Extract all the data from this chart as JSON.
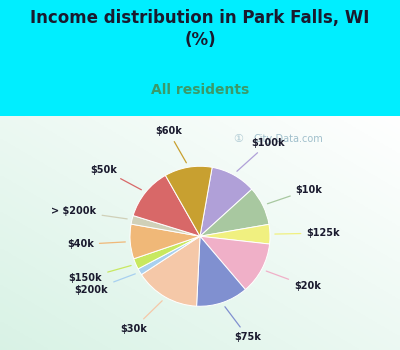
{
  "title": "Income distribution in Park Falls, WI\n(%)",
  "subtitle": "All residents",
  "labels": [
    "$100k",
    "$10k",
    "$125k",
    "$20k",
    "$75k",
    "$30k",
    "$200k",
    "$150k",
    "$40k",
    "> $200k",
    "$50k",
    "$60k"
  ],
  "sizes": [
    10.5,
    9.0,
    4.5,
    12.0,
    12.0,
    15.0,
    1.5,
    2.5,
    8.0,
    2.0,
    12.0,
    11.0
  ],
  "colors": [
    "#b0a0d8",
    "#a8c8a0",
    "#f0f080",
    "#f0b0c8",
    "#8090d0",
    "#f5c8a8",
    "#a8d0f0",
    "#c8e860",
    "#f0b878",
    "#d0d0b8",
    "#d86868",
    "#c8a030"
  ],
  "bg_color_outer": "#00eeff",
  "title_color": "#1a1a2e",
  "subtitle_color": "#3a9a6a",
  "startangle": 80,
  "watermark": "City-Data.com"
}
